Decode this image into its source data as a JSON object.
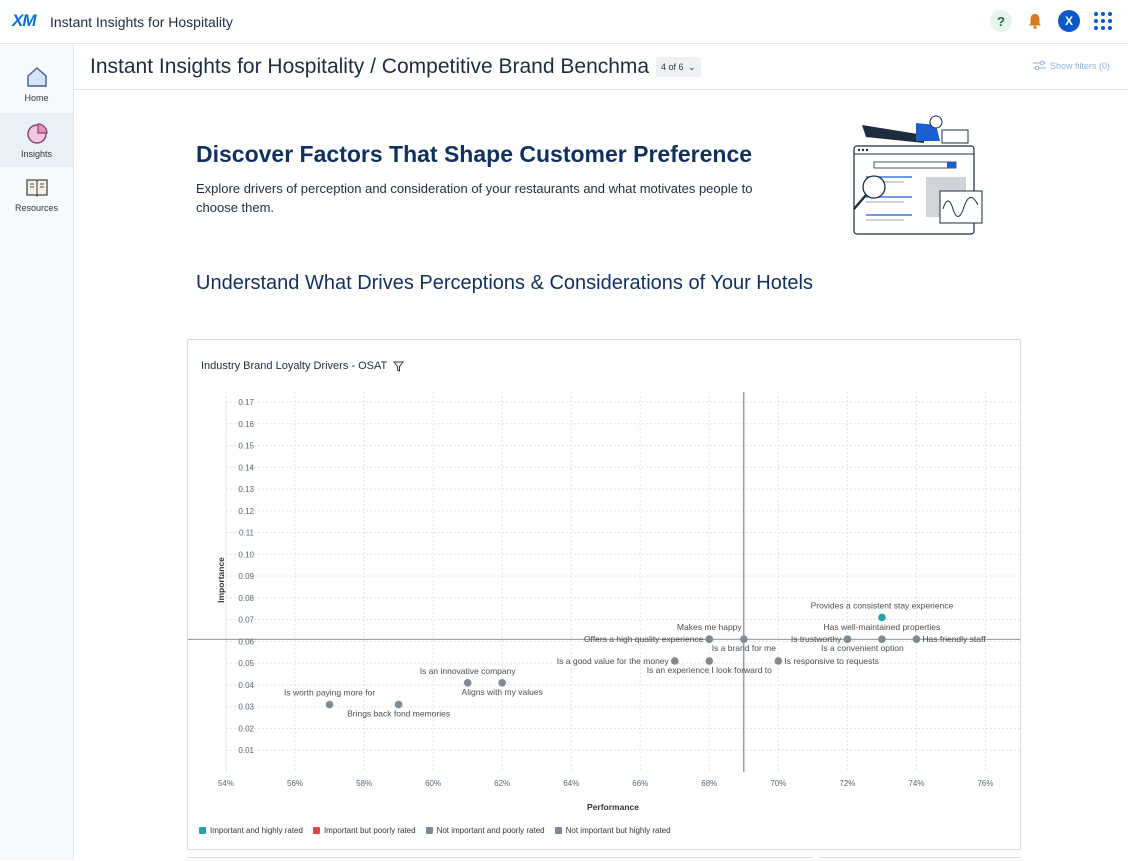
{
  "topbar": {
    "logo": "XM",
    "app_title": "Instant Insights for Hospitality",
    "help_label": "?",
    "avatar_initial": "X"
  },
  "sidebar": {
    "items": [
      {
        "label": "Home",
        "icon": "home-icon"
      },
      {
        "label": "Insights",
        "icon": "pie-chart-icon",
        "active": true
      },
      {
        "label": "Resources",
        "icon": "book-icon"
      }
    ]
  },
  "header": {
    "title": "Instant Insights for Hospitality / Competitive Brand Benchmarking",
    "pager": "4 of 6",
    "filters_label": "Show filters (0)"
  },
  "main": {
    "heading": "Discover Factors That Shape Customer Preference",
    "description": "Explore drivers of perception and consideration of your restaurants and what motivates people to choose them.",
    "subheading": "Understand What Drives Perceptions & Considerations of Your Hotels"
  },
  "chart_card": {
    "title": "Industry Brand Loyalty Drivers - OSAT"
  },
  "chart_data": {
    "type": "scatter",
    "title": "Industry Brand Loyalty Drivers - OSAT",
    "xlabel": "Performance",
    "ylabel": "Importance",
    "xlim": [
      0.54,
      0.77
    ],
    "ylim": [
      0.0,
      0.17
    ],
    "x_ticks": [
      "54%",
      "56%",
      "58%",
      "60%",
      "62%",
      "64%",
      "66%",
      "68%",
      "70%",
      "72%",
      "74%",
      "76%"
    ],
    "y_ticks": [
      "0.01",
      "0.02",
      "0.03",
      "0.04",
      "0.05",
      "0.06",
      "0.07",
      "0.08",
      "0.09",
      "0.10",
      "0.11",
      "0.12",
      "0.13",
      "0.14",
      "0.15",
      "0.16",
      "0.17"
    ],
    "x_ref": 0.69,
    "y_ref": 0.061,
    "grid": true,
    "legend_position": "bottom-left",
    "categories": [
      {
        "name": "Important and highly rated",
        "color": "#2aa2ad"
      },
      {
        "name": "Important but poorly rated",
        "color": "#e0464f"
      },
      {
        "name": "Not important and poorly rated",
        "color": "#7e8a96"
      },
      {
        "name": "Not important but highly rated",
        "color": "#7e8a96"
      }
    ],
    "points": [
      {
        "label": "Provides a consistent stay experience",
        "x": 0.73,
        "y": 0.071,
        "cat": 0,
        "anchor": "above"
      },
      {
        "label": "Has well-maintained properties",
        "x": 0.73,
        "y": 0.061,
        "cat": 3,
        "anchor": "above"
      },
      {
        "label": "Has friendly staff",
        "x": 0.74,
        "y": 0.061,
        "cat": 3,
        "anchor": "right"
      },
      {
        "label": "Is trustworthy",
        "x": 0.72,
        "y": 0.061,
        "cat": 3,
        "anchor": "left"
      },
      {
        "label": "Is a convenient option",
        "x": 0.72,
        "y": 0.061,
        "cat": 3,
        "anchor": "below-right"
      },
      {
        "label": "Makes me happy",
        "x": 0.68,
        "y": 0.061,
        "cat": 2,
        "anchor": "above"
      },
      {
        "label": "Is a brand for me",
        "x": 0.69,
        "y": 0.061,
        "cat": 3,
        "anchor": "below"
      },
      {
        "label": "Offers a high quality experience",
        "x": 0.68,
        "y": 0.061,
        "cat": 2,
        "anchor": "left"
      },
      {
        "label": "Is responsive to requests",
        "x": 0.7,
        "y": 0.051,
        "cat": 3,
        "anchor": "right"
      },
      {
        "label": "Is a good value for the money",
        "x": 0.67,
        "y": 0.051,
        "cat": 2,
        "anchor": "left"
      },
      {
        "label": "Is an experience I look forward to",
        "x": 0.68,
        "y": 0.051,
        "cat": 2,
        "anchor": "below"
      },
      {
        "label": "Is an innovative company",
        "x": 0.61,
        "y": 0.041,
        "cat": 2,
        "anchor": "above"
      },
      {
        "label": "Aligns with my values",
        "x": 0.62,
        "y": 0.041,
        "cat": 2,
        "anchor": "below"
      },
      {
        "label": "Is worth paying more for",
        "x": 0.57,
        "y": 0.031,
        "cat": 2,
        "anchor": "above"
      },
      {
        "label": "Brings back fond memories",
        "x": 0.59,
        "y": 0.031,
        "cat": 2,
        "anchor": "below"
      }
    ]
  }
}
